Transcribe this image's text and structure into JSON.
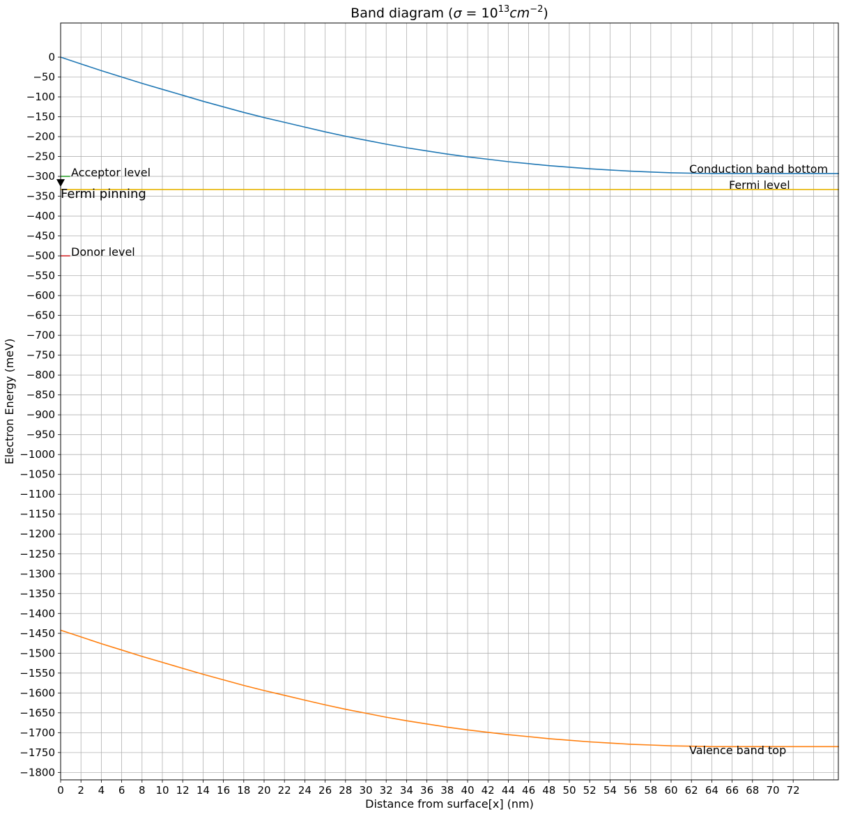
{
  "chart_data": {
    "type": "line",
    "title": "Band diagram",
    "title_math": {
      "open": "(",
      "sigma": "σ",
      "equals": " = 10",
      "exponent": "13",
      "unit": "cm",
      "unit_exponent": "−2",
      "close": ")"
    },
    "xlabel": "Distance from surface[x] (nm)",
    "ylabel": "Electron Energy (meV)",
    "xlim": [
      0,
      76.5
    ],
    "ylim": [
      -1820,
      85
    ],
    "x_ticks": [
      0,
      2,
      4,
      6,
      8,
      10,
      12,
      14,
      16,
      18,
      20,
      22,
      24,
      26,
      28,
      30,
      32,
      34,
      36,
      38,
      40,
      42,
      44,
      46,
      48,
      50,
      52,
      54,
      56,
      58,
      60,
      62,
      64,
      66,
      68,
      70,
      72
    ],
    "y_ticks": [
      0,
      -50,
      -100,
      -150,
      -200,
      -250,
      -300,
      -350,
      -400,
      -450,
      -500,
      -550,
      -600,
      -650,
      -700,
      -750,
      -800,
      -850,
      -900,
      -950,
      -1000,
      -1050,
      -1100,
      -1150,
      -1200,
      -1250,
      -1300,
      -1350,
      -1400,
      -1450,
      -1500,
      -1550,
      -1600,
      -1650,
      -1700,
      -1750,
      -1800
    ],
    "grid": true,
    "x_grid_extra": [
      74,
      76
    ],
    "series": [
      {
        "name": "Conduction band bottom",
        "color": "#1f77b4",
        "x": [
          0,
          2,
          4,
          6,
          8,
          10,
          12,
          14,
          16,
          18,
          20,
          22,
          24,
          26,
          28,
          30,
          32,
          34,
          36,
          38,
          40,
          42,
          44,
          46,
          48,
          50,
          52,
          54,
          56,
          58,
          60,
          62,
          64,
          66,
          68,
          70,
          72,
          74,
          76.5
        ],
        "y": [
          0,
          -17,
          -34,
          -50,
          -66,
          -81,
          -96,
          -111,
          -125,
          -139,
          -152,
          -164,
          -176,
          -188,
          -199,
          -209,
          -219,
          -228,
          -236,
          -244,
          -251,
          -257,
          -263,
          -268,
          -273,
          -277,
          -281,
          -284,
          -287,
          -289,
          -291,
          -292,
          -293,
          -293,
          -293,
          -293,
          -293,
          -293,
          -293
        ]
      },
      {
        "name": "Valence band top",
        "color": "#ff7f0e",
        "x": [
          0,
          2,
          4,
          6,
          8,
          10,
          12,
          14,
          16,
          18,
          20,
          22,
          24,
          26,
          28,
          30,
          32,
          34,
          36,
          38,
          40,
          42,
          44,
          46,
          48,
          50,
          52,
          54,
          56,
          58,
          60,
          62,
          64,
          66,
          68,
          70,
          72,
          74,
          76.5
        ],
        "y": [
          -1442,
          -1459,
          -1476,
          -1492,
          -1508,
          -1523,
          -1538,
          -1553,
          -1567,
          -1581,
          -1594,
          -1606,
          -1618,
          -1630,
          -1641,
          -1651,
          -1661,
          -1670,
          -1678,
          -1686,
          -1693,
          -1699,
          -1705,
          -1710,
          -1715,
          -1719,
          -1723,
          -1726,
          -1729,
          -1731,
          -1733,
          -1734,
          -1735,
          -1735,
          -1735,
          -1735,
          -1735,
          -1735,
          -1735
        ]
      },
      {
        "name": "Fermi level",
        "color": "#e6b400",
        "x": [
          0,
          76.5
        ],
        "y": [
          -333,
          -333
        ]
      }
    ],
    "level_markers": [
      {
        "name": "Acceptor level",
        "color": "#2ca02c",
        "x": [
          0,
          0.8
        ],
        "y": -300
      },
      {
        "name": "Donor level",
        "color": "#d62728",
        "x": [
          0,
          0.8
        ],
        "y": -500
      }
    ],
    "fermi_pinning": {
      "label": "Fermi pinning",
      "x": 0,
      "y": -316
    },
    "annotations": {
      "acceptor": "Acceptor level",
      "donor": "Donor level",
      "conduction": "Conduction band bottom",
      "fermi": "Fermi level",
      "valence": "Valence band top",
      "pinning": "Fermi pinning"
    }
  }
}
